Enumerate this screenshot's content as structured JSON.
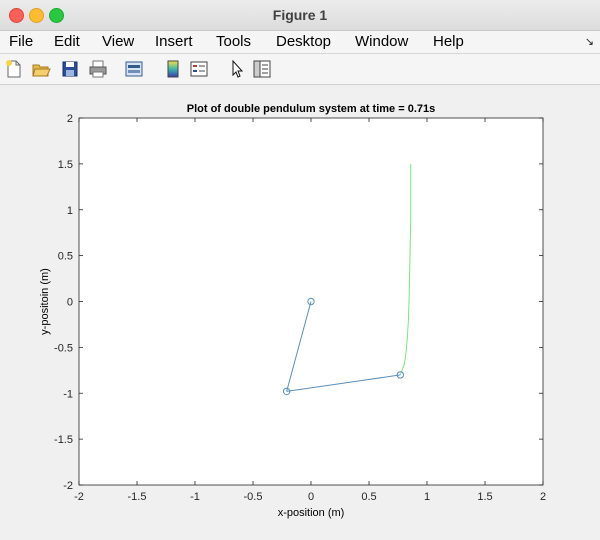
{
  "window": {
    "title": "Figure 1"
  },
  "menu": [
    "File",
    "Edit",
    "View",
    "Insert",
    "Tools",
    "Desktop",
    "Window",
    "Help"
  ],
  "toolbar_icons": [
    "new-figure-icon",
    "open-file-icon",
    "save-icon",
    "print-icon",
    "print-preview-icon",
    "insert-colorbar-icon",
    "insert-legend-icon",
    "edit-plot-pointer-icon",
    "property-inspector-icon"
  ],
  "colors": {
    "pendulum": "#5b8fb9",
    "trace": "#7de37d",
    "axes_bg": "#ffffff"
  },
  "chart_data": {
    "type": "line",
    "title": "Plot of double pendulum system at time = 0.71s",
    "xlabel": "x-position (m)",
    "ylabel": "y-positoin (m)",
    "xlim": [
      -2,
      2
    ],
    "ylim": [
      -2,
      2
    ],
    "xticks": [
      "-2",
      "-1.5",
      "-1",
      "-0.5",
      "0",
      "0.5",
      "1",
      "1.5",
      "2"
    ],
    "yticks": [
      "-2",
      "-1.5",
      "-1",
      "-0.5",
      "0",
      "0.5",
      "1",
      "1.5",
      "2"
    ],
    "grid": false,
    "pendulum": {
      "pivot": [
        0,
        0
      ],
      "mass1": [
        -0.21,
        -0.98
      ],
      "mass2": [
        0.77,
        -0.8
      ]
    },
    "trace": [
      [
        0.86,
        1.5
      ],
      [
        0.86,
        1.2
      ],
      [
        0.86,
        0.9
      ],
      [
        0.855,
        0.6
      ],
      [
        0.85,
        0.3
      ],
      [
        0.845,
        0.0
      ],
      [
        0.84,
        -0.2
      ],
      [
        0.83,
        -0.4
      ],
      [
        0.82,
        -0.55
      ],
      [
        0.805,
        -0.68
      ],
      [
        0.77,
        -0.8
      ]
    ]
  }
}
